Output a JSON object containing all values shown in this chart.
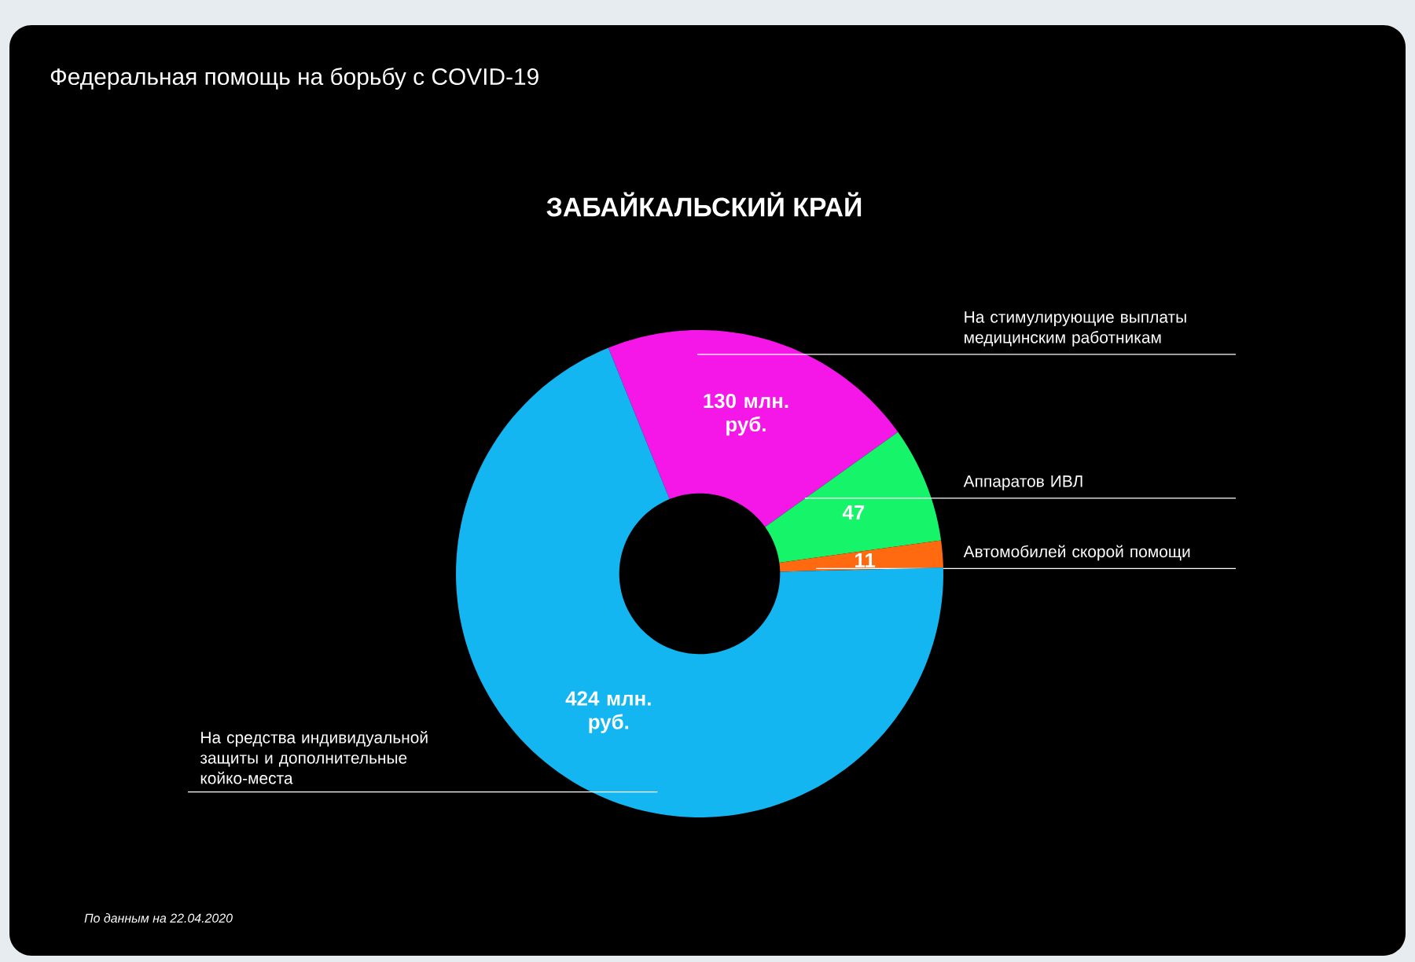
{
  "chart_data": {
    "type": "donut",
    "title": "Федеральная помощь на борьбу с COVID-19",
    "subtitle": "ЗАБАЙКАЛЬСКИЙ КРАЙ",
    "categories": [
      "На стимулирующие выплаты медицинским работникам",
      "Аппаратов ИВЛ",
      "Автомобилей скорой помощи",
      "На средства индивидуальной защиты и дополнительные койко-места"
    ],
    "values": [
      130,
      47,
      11,
      424
    ],
    "colors": [
      "#f516e8",
      "#16f56a",
      "#ff6a10",
      "#14b6f2"
    ],
    "value_labels": [
      "130 млн. руб.",
      "47",
      "11",
      "424 млн. руб."
    ],
    "annotations": [
      "По данным на 22.04.2020"
    ]
  }
}
